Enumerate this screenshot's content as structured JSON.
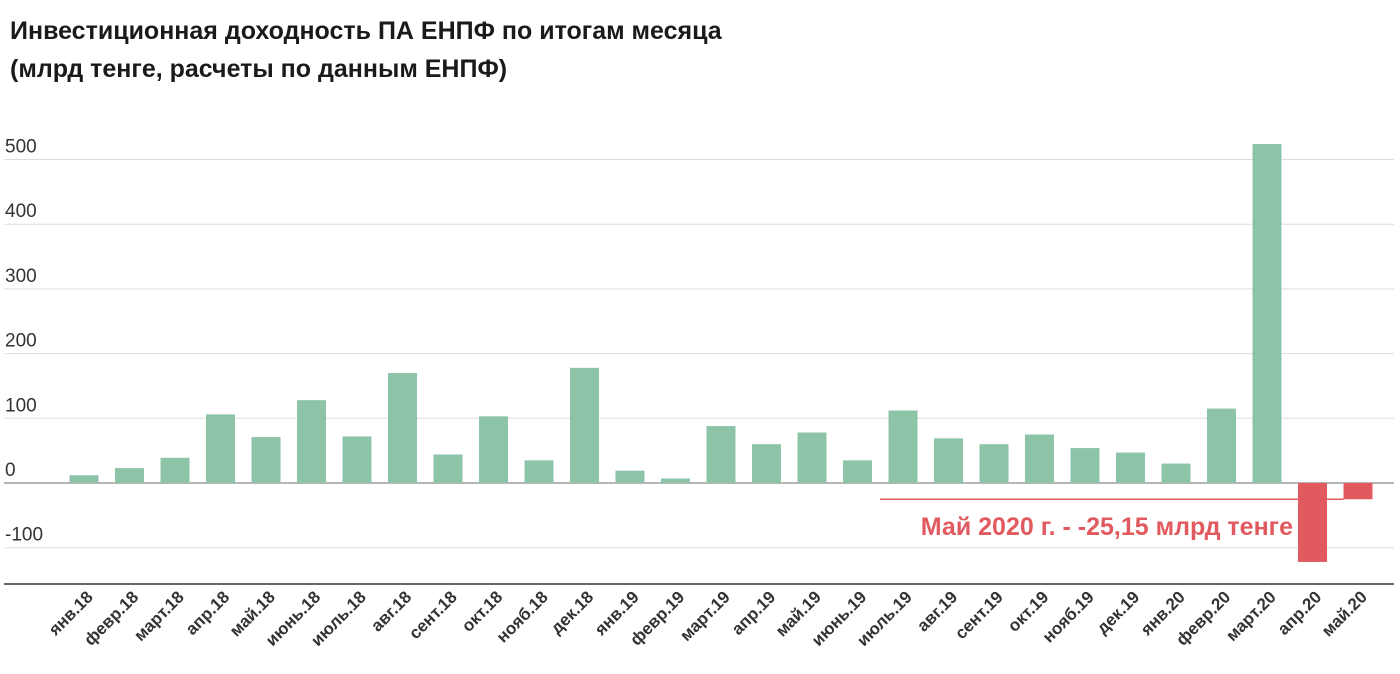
{
  "chart_data": {
    "type": "bar",
    "title": "Инвестиционная доходность ПА ЕНПФ по итогам месяца",
    "subtitle": "(млрд тенге, расчеты по данным ЕНПФ)",
    "xlabel": "",
    "ylabel": "",
    "ylim": [
      -160,
      560
    ],
    "yticks": [
      500,
      400,
      300,
      200,
      100,
      0,
      -100
    ],
    "grid": true,
    "categories": [
      "янв.18",
      "февр.18",
      "март.18",
      "апр.18",
      "май.18",
      "июнь.18",
      "июль.18",
      "авг.18",
      "сент.18",
      "окт.18",
      "нояб.18",
      "дек.18",
      "янв.19",
      "февр.19",
      "март.19",
      "апр.19",
      "май.19",
      "июнь.19",
      "июль.19",
      "авг.19",
      "сент.19",
      "окт.19",
      "нояб.19",
      "дек.19",
      "янв.20",
      "февр.20",
      "март.20",
      "апр.20",
      "май.20"
    ],
    "values": [
      12,
      23,
      39,
      106,
      71,
      128,
      72,
      170,
      44,
      103,
      35,
      178,
      19,
      7,
      88,
      60,
      78,
      35,
      112,
      69,
      60,
      75,
      54,
      47,
      30,
      115,
      524,
      -122,
      -25.15
    ],
    "colors": {
      "positive": "#8dc4a8",
      "negative": "#e05a5f"
    },
    "annotation": {
      "text": "Май 2020 г. - -25,15 млрд тенге",
      "target": "май.20",
      "value": -25.15,
      "color": "#e05a5f"
    }
  }
}
